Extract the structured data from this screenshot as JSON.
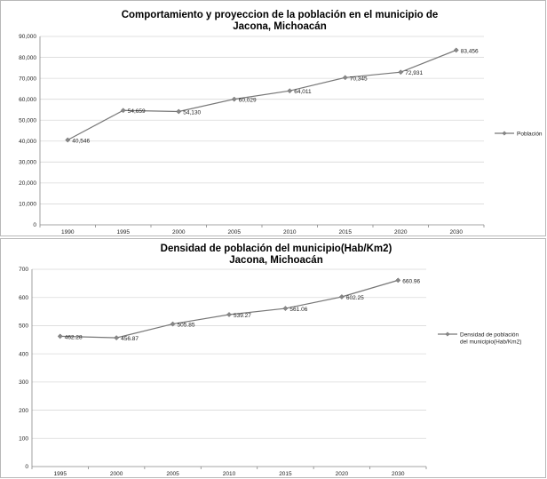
{
  "chart_data": [
    {
      "type": "line",
      "title_lines": [
        "Comportamiento y proyeccion de la población en el municipio de",
        "Jacona, Michoacán"
      ],
      "categories": [
        "1990",
        "1995",
        "2000",
        "2005",
        "2010",
        "2015",
        "2020",
        "2030"
      ],
      "series": [
        {
          "name": "Población",
          "values": [
            40546,
            54659,
            54130,
            60029,
            64011,
            70345,
            72931,
            83456
          ],
          "labels": [
            "40,546",
            "54,659",
            "54,130",
            "60,029",
            "64,011",
            "70,345",
            "72,931",
            "83,456"
          ]
        }
      ],
      "yticks": [
        "0",
        "10,000",
        "20,000",
        "30,000",
        "40,000",
        "50,000",
        "60,000",
        "70,000",
        "80,000",
        "90,000"
      ],
      "ylim": [
        0,
        90000
      ],
      "grid": true,
      "legend": "right",
      "colors": {
        "series": "#777777",
        "grid": "#d9d9d9"
      }
    },
    {
      "type": "line",
      "title_lines": [
        "Densidad de población del municipio(Hab/Km2)",
        "Jacona, Michoacán"
      ],
      "categories": [
        "1995",
        "2000",
        "2005",
        "2010",
        "2015",
        "2020",
        "2030"
      ],
      "series": [
        {
          "name_lines": [
            "Densidad de población",
            "del municipio(Hab/Km2)"
          ],
          "values": [
            462.28,
            456.87,
            505.85,
            539.27,
            561.06,
            602.25,
            660.96
          ],
          "labels": [
            "462.28",
            "456.87",
            "505.85",
            "539.27",
            "561.06",
            "602.25",
            "660.96"
          ]
        }
      ],
      "yticks": [
        "0",
        "100",
        "200",
        "300",
        "400",
        "500",
        "600",
        "700"
      ],
      "ylim": [
        0,
        700
      ],
      "grid": true,
      "legend": "right",
      "colors": {
        "series": "#777777",
        "grid": "#d9d9d9"
      }
    }
  ]
}
